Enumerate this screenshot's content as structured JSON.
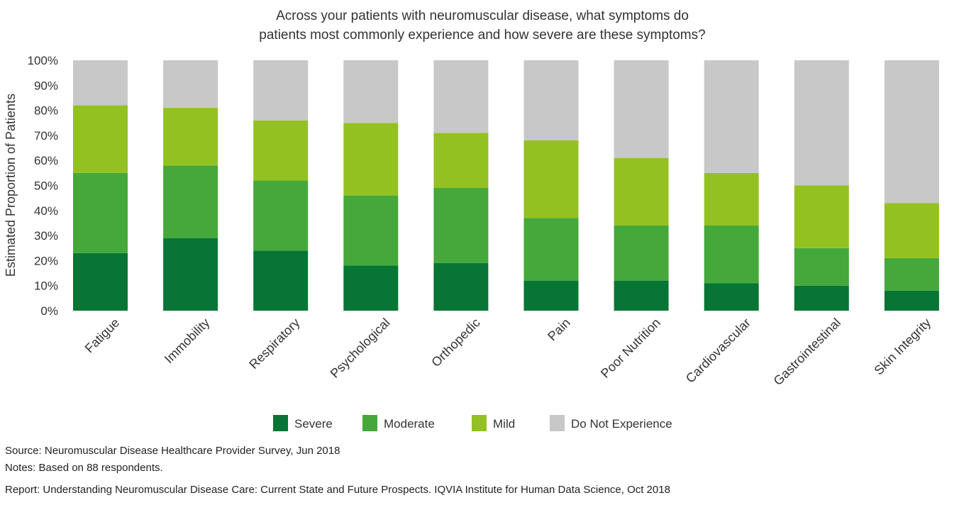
{
  "chart_data": {
    "type": "bar",
    "stacked": true,
    "title_lines": [
      "Across your patients with neuromuscular disease, what symptoms do",
      "patients most commonly experience and how severe are these symptoms?"
    ],
    "ylabel": "Estimated Proportion of Patients",
    "xlabel": "",
    "ylim": [
      0,
      100
    ],
    "yticks": [
      "0%",
      "10%",
      "20%",
      "30%",
      "40%",
      "50%",
      "60%",
      "70%",
      "80%",
      "90%",
      "100%"
    ],
    "categories": [
      "Fatigue",
      "Immobility",
      "Respiratory",
      "Psychological",
      "Orthopedic",
      "Pain",
      "Poor Nutrition",
      "Cardiovascular",
      "Gastrointestinal",
      "Skin Integrity"
    ],
    "series": [
      {
        "name": "Severe",
        "color": "#077534",
        "values": [
          23,
          29,
          24,
          18,
          19,
          12,
          12,
          11,
          10,
          8
        ]
      },
      {
        "name": "Moderate",
        "color": "#45a83a",
        "values": [
          32,
          29,
          28,
          28,
          30,
          25,
          22,
          23,
          15,
          13
        ]
      },
      {
        "name": "Mild",
        "color": "#94c122",
        "values": [
          27,
          23,
          24,
          29,
          22,
          31,
          27,
          21,
          25,
          22
        ]
      },
      {
        "name": "Do Not Experience",
        "color": "#c8c8c8",
        "values": [
          18,
          19,
          24,
          25,
          29,
          32,
          39,
          45,
          50,
          57
        ]
      }
    ],
    "legend_position": "bottom"
  },
  "footer": {
    "source": "Source: Neuromuscular Disease Healthcare Provider Survey, Jun 2018",
    "notes": "Notes: Based on 88 respondents.",
    "report": "Report: Understanding Neuromuscular Disease Care: Current State and Future Prospects. IQVIA Institute for Human Data Science, Oct 2018"
  }
}
